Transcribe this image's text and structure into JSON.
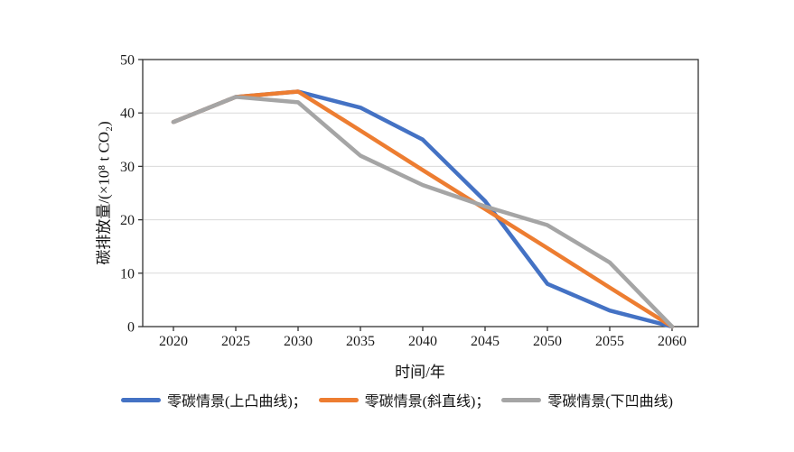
{
  "chart_data": {
    "type": "line",
    "title": "",
    "xlabel": "时间/年",
    "ylabel": "碳排放量/(×10⁸ t CO₂)",
    "x": [
      2020,
      2025,
      2030,
      2035,
      2040,
      2045,
      2050,
      2055,
      2060
    ],
    "y_ticks": [
      0,
      10,
      20,
      30,
      40,
      50
    ],
    "ylim": [
      0,
      50
    ],
    "grid": "horizontal",
    "legend_position": "bottom",
    "series": [
      {
        "name": "零碳情景(上凸曲线)",
        "color": "#4472C4",
        "values": [
          38.3,
          43,
          44,
          41,
          35,
          23.5,
          8,
          3,
          0
        ]
      },
      {
        "name": "零碳情景(斜直线)",
        "color": "#ED7D31",
        "values": [
          38.3,
          43,
          44,
          36.7,
          29.3,
          22,
          14.7,
          7.3,
          0
        ]
      },
      {
        "name": "零碳情景(下凹曲线)",
        "color": "#A5A5A5",
        "values": [
          38.3,
          43,
          42,
          32,
          26.5,
          22.5,
          19,
          12,
          0
        ]
      }
    ]
  },
  "legend": {
    "items": [
      {
        "label": "零碳情景(上凸曲线)；"
      },
      {
        "label": "零碳情景(斜直线)；"
      },
      {
        "label": "零碳情景(下凹曲线)"
      }
    ]
  },
  "colors": {
    "axis": "#333333",
    "gridline": "#d9d9d9",
    "tick_text": "#1a1a1a"
  }
}
